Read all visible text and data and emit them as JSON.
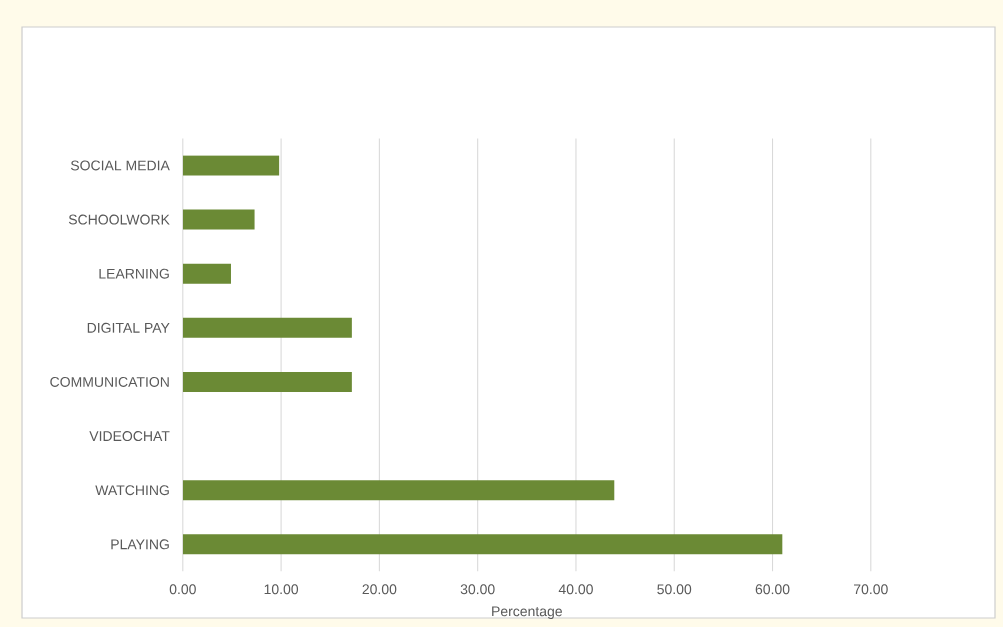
{
  "chart_data": {
    "type": "bar",
    "orientation": "horizontal",
    "xlabel": "Percentage",
    "categories": [
      "SOCIAL MEDIA",
      "SCHOOLWORK",
      "LEARNING",
      "DIGITAL PAY",
      "COMMUNICATION",
      "VIDEOCHAT",
      "WATCHING",
      "PLAYING"
    ],
    "values": [
      9.8,
      7.3,
      4.9,
      17.2,
      17.2,
      0,
      43.9,
      61.0
    ],
    "color": "#6b8a35",
    "xlim": [
      0,
      70
    ],
    "xticks": [
      {
        "value": 0,
        "label": "0.00"
      },
      {
        "value": 10,
        "label": "10.00"
      },
      {
        "value": 20,
        "label": "20.00"
      },
      {
        "value": 30,
        "label": "30.00"
      },
      {
        "value": 40,
        "label": "40.00"
      },
      {
        "value": 50,
        "label": "50.00"
      },
      {
        "value": 60,
        "label": "60.00"
      },
      {
        "value": 70,
        "label": "70.00"
      }
    ],
    "grid": "x"
  }
}
